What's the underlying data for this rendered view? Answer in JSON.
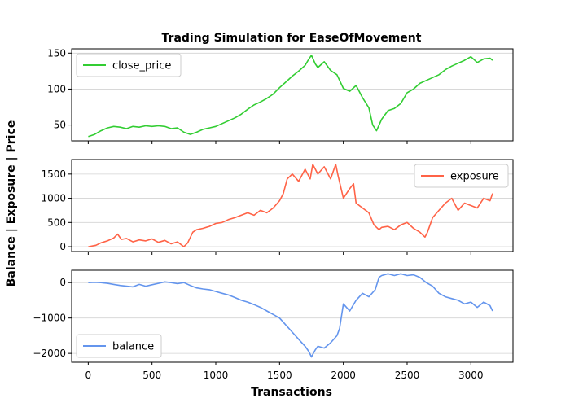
{
  "chart_data": {
    "type": "line",
    "title": "Trading Simulation for EaseOfMovement",
    "xlabel": "Transactions",
    "ylabel": "Balance | Exposure | Price",
    "xlim": [
      -130,
      3330
    ],
    "xticks": [
      0,
      500,
      1000,
      1500,
      2000,
      2500,
      3000
    ],
    "xtick_labels": [
      "0",
      "500",
      "1000",
      "1500",
      "2000",
      "2500",
      "3000"
    ],
    "grid": "horizontal",
    "panels": [
      {
        "name": "close_price",
        "legend": "close_price",
        "legend_position": "upper-left",
        "color": "#32cd32",
        "ylim": [
          28,
          156
        ],
        "yticks": [
          50,
          100,
          150
        ],
        "ytick_labels": [
          "50",
          "100",
          "150"
        ],
        "x": [
          0,
          50,
          100,
          150,
          200,
          250,
          300,
          350,
          400,
          450,
          500,
          550,
          600,
          650,
          700,
          750,
          800,
          850,
          900,
          950,
          1000,
          1050,
          1100,
          1150,
          1200,
          1250,
          1300,
          1350,
          1400,
          1450,
          1500,
          1550,
          1600,
          1650,
          1700,
          1730,
          1750,
          1780,
          1800,
          1850,
          1900,
          1950,
          2000,
          2050,
          2100,
          2150,
          2200,
          2230,
          2260,
          2300,
          2350,
          2400,
          2450,
          2500,
          2550,
          2600,
          2650,
          2700,
          2750,
          2800,
          2850,
          2900,
          2950,
          3000,
          3050,
          3100,
          3150,
          3170
        ],
        "values": [
          34,
          37,
          42,
          46,
          48,
          47,
          45,
          48,
          47,
          49,
          48,
          49,
          48,
          45,
          46,
          40,
          37,
          40,
          44,
          46,
          48,
          52,
          56,
          60,
          65,
          72,
          78,
          82,
          87,
          93,
          102,
          110,
          118,
          125,
          133,
          142,
          147,
          135,
          130,
          138,
          126,
          120,
          101,
          97,
          105,
          88,
          74,
          50,
          42,
          58,
          70,
          73,
          80,
          95,
          100,
          108,
          112,
          116,
          120,
          127,
          132,
          136,
          140,
          145,
          137,
          142,
          143,
          140
        ]
      },
      {
        "name": "exposure",
        "legend": "exposure",
        "legend_position": "upper-right",
        "color": "#ff6347",
        "ylim": [
          -100,
          1800
        ],
        "yticks": [
          0,
          500,
          1000,
          1500
        ],
        "ytick_labels": [
          "0",
          "500",
          "1000",
          "1500"
        ],
        "x": [
          0,
          60,
          100,
          150,
          200,
          230,
          260,
          300,
          350,
          400,
          450,
          500,
          550,
          600,
          650,
          700,
          750,
          780,
          820,
          850,
          900,
          950,
          1000,
          1050,
          1100,
          1150,
          1200,
          1250,
          1300,
          1350,
          1400,
          1450,
          1500,
          1530,
          1560,
          1600,
          1650,
          1700,
          1740,
          1760,
          1800,
          1850,
          1900,
          1940,
          1960,
          2000,
          2050,
          2080,
          2100,
          2150,
          2200,
          2240,
          2280,
          2300,
          2350,
          2400,
          2450,
          2500,
          2550,
          2600,
          2640,
          2660,
          2700,
          2750,
          2800,
          2850,
          2900,
          2950,
          3000,
          3050,
          3100,
          3150,
          3170
        ],
        "values": [
          0,
          30,
          80,
          120,
          180,
          260,
          150,
          170,
          100,
          140,
          120,
          160,
          90,
          130,
          60,
          100,
          0,
          80,
          300,
          350,
          380,
          420,
          480,
          500,
          560,
          600,
          650,
          700,
          650,
          750,
          700,
          800,
          950,
          1100,
          1400,
          1500,
          1350,
          1600,
          1400,
          1700,
          1500,
          1650,
          1400,
          1700,
          1450,
          1000,
          1200,
          1300,
          900,
          800,
          700,
          450,
          350,
          400,
          420,
          350,
          450,
          500,
          380,
          300,
          200,
          300,
          600,
          750,
          900,
          1000,
          750,
          900,
          850,
          800,
          1000,
          950,
          1100
        ]
      },
      {
        "name": "balance",
        "legend": "balance",
        "legend_position": "lower-left",
        "color": "#6495ed",
        "ylim": [
          -2250,
          350
        ],
        "yticks": [
          0,
          -1000,
          -2000
        ],
        "ytick_labels": [
          "0",
          "−1000",
          "−2000"
        ],
        "x": [
          0,
          50,
          100,
          150,
          200,
          250,
          300,
          350,
          400,
          450,
          500,
          550,
          600,
          650,
          700,
          750,
          800,
          850,
          900,
          950,
          1000,
          1050,
          1100,
          1150,
          1200,
          1250,
          1300,
          1350,
          1400,
          1450,
          1500,
          1550,
          1600,
          1650,
          1700,
          1730,
          1750,
          1780,
          1800,
          1850,
          1900,
          1950,
          1970,
          2000,
          2050,
          2100,
          2150,
          2200,
          2250,
          2280,
          2300,
          2350,
          2400,
          2450,
          2500,
          2550,
          2600,
          2650,
          2700,
          2750,
          2800,
          2850,
          2900,
          2950,
          3000,
          3050,
          3100,
          3150,
          3170
        ],
        "values": [
          0,
          10,
          0,
          -20,
          -50,
          -80,
          -100,
          -120,
          -50,
          -100,
          -60,
          -20,
          20,
          0,
          -30,
          0,
          -80,
          -150,
          -180,
          -200,
          -250,
          -300,
          -350,
          -420,
          -500,
          -550,
          -620,
          -700,
          -800,
          -900,
          -1000,
          -1200,
          -1400,
          -1600,
          -1800,
          -1950,
          -2100,
          -1900,
          -1800,
          -1850,
          -1700,
          -1500,
          -1300,
          -600,
          -800,
          -500,
          -300,
          -400,
          -200,
          150,
          200,
          250,
          200,
          250,
          200,
          220,
          150,
          0,
          -100,
          -300,
          -400,
          -450,
          -500,
          -600,
          -550,
          -700,
          -550,
          -650,
          -800
        ]
      }
    ]
  }
}
